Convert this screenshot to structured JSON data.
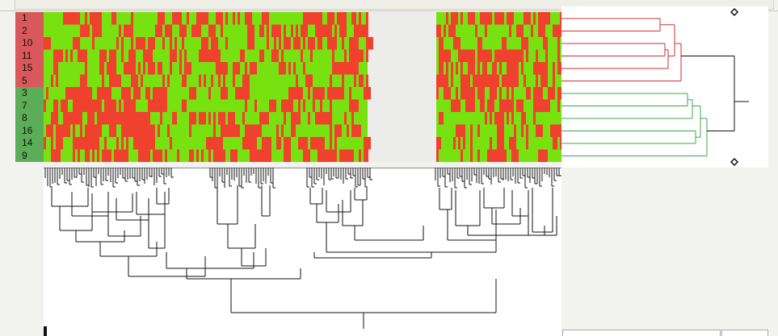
{
  "heatmap": {
    "row_labels": [
      "1",
      "2",
      "10",
      "11",
      "15",
      "5",
      "3",
      "7",
      "8",
      "16",
      "14",
      "9"
    ],
    "row_groups": [
      "red",
      "red",
      "red",
      "red",
      "red",
      "red",
      "green",
      "green",
      "green",
      "green",
      "green",
      "green"
    ],
    "colors": {
      "high": "#f0402e",
      "low": "#78e210",
      "label_red": "#d9585b",
      "label_green": "#5cad57",
      "gap": "#ececea",
      "dendro_red": "#c8323a",
      "dendro_green": "#3aa84b",
      "dendro_black": "#111111"
    }
  },
  "dendrogram": {
    "row_tree_markers": [
      "diamond-top",
      "diamond-bottom"
    ]
  }
}
